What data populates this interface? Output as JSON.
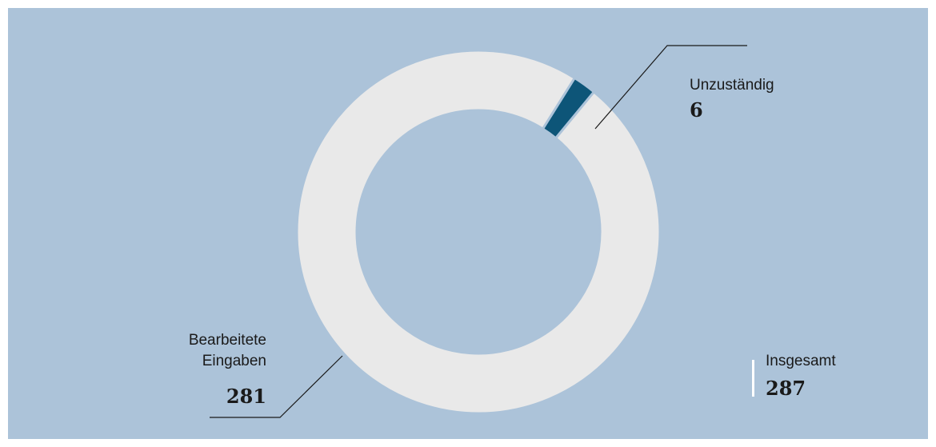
{
  "chart_data": {
    "type": "pie",
    "variant": "donut",
    "series": [
      {
        "name": "Unzuständig",
        "value": 6,
        "color": "#0d5578"
      },
      {
        "name": "Bearbeitete Eingaben",
        "value": 281,
        "color": "#e9e9e9"
      }
    ],
    "total": {
      "label": "Insgesamt",
      "value": 287
    },
    "labels": {
      "unzustaendig": "Unzuständig",
      "unzustaendig_value": "6",
      "bearbeitet_line1": "Bearbeitete",
      "bearbeitet_line2": "Eingaben",
      "bearbeitet_value": "281",
      "total_label": "Insgesamt",
      "total_value": "287"
    },
    "colors": {
      "background": "#acc3d9",
      "separator": "#acc3d9",
      "leader": "#1a1a1a"
    }
  }
}
